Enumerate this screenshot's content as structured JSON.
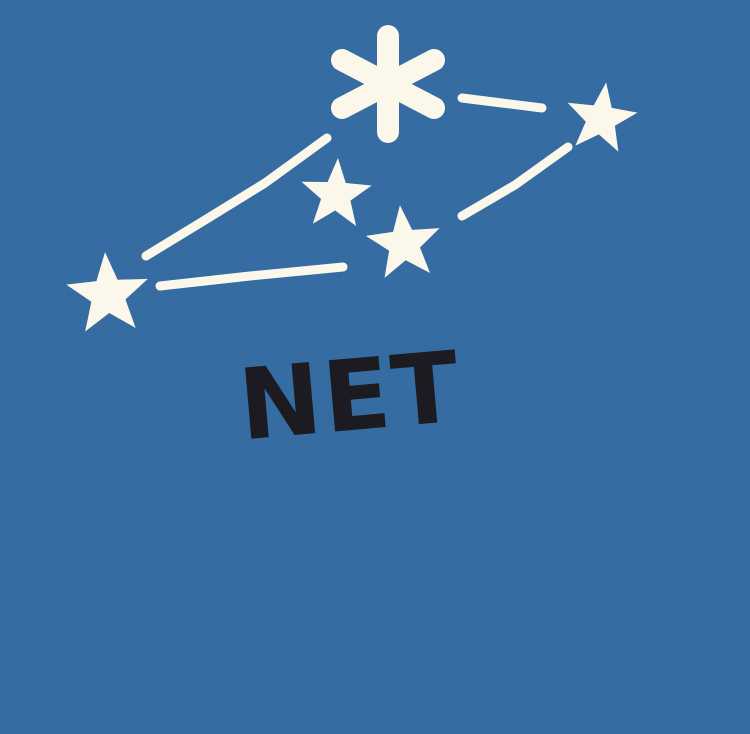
{
  "constellation": {
    "name": "NET"
  },
  "colors": {
    "background": "#2f679f",
    "star": "#fbf7ea",
    "line": "#fbf7ea",
    "label": "#1c1b22"
  },
  "icons": {
    "star": "five-point-star-icon",
    "bright_star": "six-point-star-icon"
  }
}
